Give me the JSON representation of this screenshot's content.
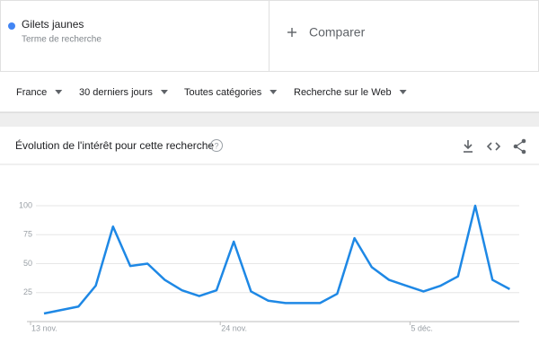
{
  "search": {
    "term": "Gilets jaunes",
    "subtitle": "Terme de recherche",
    "compare": "Comparer"
  },
  "filters": [
    "France",
    "30 derniers jours",
    "Toutes catégories",
    "Recherche sur le Web"
  ],
  "chart_data": {
    "type": "line",
    "title": "Évolution de l'intérêt pour cette recherche",
    "categories": [
      "13 nov.",
      null,
      null,
      null,
      null,
      null,
      null,
      null,
      null,
      null,
      null,
      "24 nov.",
      null,
      null,
      null,
      null,
      null,
      null,
      null,
      null,
      null,
      null,
      "5 déc.",
      null,
      null,
      null,
      null,
      null
    ],
    "series": [
      {
        "name": "Gilets jaunes",
        "color": "#1e88e5",
        "values": [
          7,
          10,
          13,
          31,
          82,
          48,
          50,
          36,
          27,
          22,
          27,
          69,
          26,
          18,
          16,
          16,
          16,
          24,
          72,
          47,
          36,
          31,
          26,
          31,
          39,
          100,
          36,
          28
        ]
      }
    ],
    "ylim": [
      0,
      100
    ],
    "yticks": [
      25,
      50,
      75,
      100
    ],
    "grid": true
  }
}
